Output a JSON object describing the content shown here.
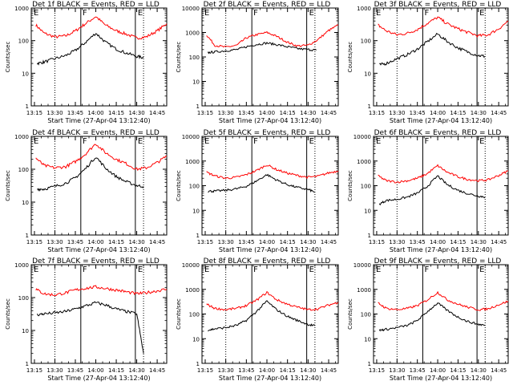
{
  "chart_data": [
    {
      "type": "line",
      "title": "Det 1f BLACK = Events, RED = LLD",
      "ylabel": "Counts/sec",
      "xlabel": "Start Time (27-Apr-04 13:12:40)",
      "y_max": 1000,
      "xlim": [
        "13:12:40",
        "14:52"
      ],
      "ylim": [
        1,
        1000
      ],
      "yscale": "log",
      "grid": false,
      "x_ticks": [
        "13:15",
        "13:30",
        "13:45",
        "14:00",
        "14:15",
        "14:30",
        "14:45"
      ],
      "y_ticks": [
        "1",
        "10",
        "100",
        "1000"
      ],
      "annotations": [
        "E",
        "F",
        "E"
      ],
      "series": [
        {
          "name": "RED = LLD",
          "color": "#ff0000",
          "x": [
            "13:16",
            "13:22",
            "13:30",
            "13:38",
            "13:45",
            "13:52",
            "14:00",
            "14:07",
            "14:15",
            "14:22",
            "14:30",
            "14:37",
            "14:45",
            "14:52"
          ],
          "values": [
            300,
            170,
            130,
            140,
            200,
            320,
            550,
            300,
            200,
            160,
            120,
            130,
            200,
            330
          ]
        },
        {
          "name": "BLACK = Events",
          "color": "#000000",
          "x": [
            "13:17",
            "13:22",
            "13:30",
            "13:38",
            "13:45",
            "13:52",
            "14:00",
            "14:07",
            "14:15",
            "14:22",
            "14:30",
            "14:35"
          ],
          "values": [
            20,
            22,
            28,
            35,
            50,
            85,
            170,
            90,
            55,
            42,
            33,
            30
          ]
        }
      ]
    },
    {
      "type": "line",
      "title": "Det 2f BLACK = Events, RED = LLD",
      "ylabel": "Counts/sec",
      "xlabel": "Start Time (27-Apr-04 13:12:40)",
      "y_max": 10000,
      "xlim": [
        "13:12:40",
        "14:52"
      ],
      "ylim": [
        1,
        10000
      ],
      "yscale": "log",
      "grid": false,
      "x_ticks": [
        "13:15",
        "13:30",
        "13:45",
        "14:00",
        "14:15",
        "14:30",
        "14:45"
      ],
      "y_ticks": [
        "1",
        "10",
        "100",
        "1000",
        "10000"
      ],
      "annotations": [
        "E",
        "F",
        "E"
      ],
      "series": [
        {
          "name": "RED = LLD",
          "color": "#ff0000",
          "x": [
            "13:16",
            "13:22",
            "13:30",
            "13:38",
            "13:45",
            "13:52",
            "14:00",
            "14:07",
            "14:15",
            "14:22",
            "14:30",
            "14:37",
            "14:45",
            "14:52"
          ],
          "values": [
            800,
            300,
            250,
            300,
            600,
            800,
            1000,
            700,
            400,
            280,
            300,
            500,
            1200,
            2000
          ]
        },
        {
          "name": "BLACK = Events",
          "color": "#000000",
          "x": [
            "13:17",
            "13:22",
            "13:30",
            "13:38",
            "13:45",
            "13:52",
            "14:00",
            "14:07",
            "14:15",
            "14:22",
            "14:30",
            "14:36"
          ],
          "values": [
            150,
            160,
            180,
            200,
            260,
            320,
            370,
            320,
            260,
            220,
            200,
            190
          ]
        }
      ]
    },
    {
      "type": "line",
      "title": "Det 3f BLACK = Events, RED = LLD",
      "ylabel": "Counts/sec",
      "xlabel": "Start Time (27-Apr-04 13:12:40)",
      "y_max": 1000,
      "xlim": [
        "13:12:40",
        "14:52"
      ],
      "ylim": [
        1,
        1000
      ],
      "yscale": "log",
      "grid": false,
      "x_ticks": [
        "13:15",
        "13:30",
        "13:45",
        "14:00",
        "14:15",
        "14:30",
        "14:45"
      ],
      "y_ticks": [
        "1",
        "10",
        "100",
        "1000"
      ],
      "annotations": [
        "E",
        "F",
        "E"
      ],
      "series": [
        {
          "name": "RED = LLD",
          "color": "#ff0000",
          "x": [
            "13:16",
            "13:22",
            "13:30",
            "13:38",
            "13:45",
            "13:52",
            "14:00",
            "14:07",
            "14:15",
            "14:22",
            "14:30",
            "14:37",
            "14:45",
            "14:52"
          ],
          "values": [
            300,
            200,
            150,
            170,
            220,
            330,
            520,
            330,
            230,
            180,
            140,
            150,
            230,
            400
          ]
        },
        {
          "name": "BLACK = Events",
          "color": "#000000",
          "x": [
            "13:17",
            "13:22",
            "13:30",
            "13:38",
            "13:45",
            "13:52",
            "14:00",
            "14:07",
            "14:15",
            "14:22",
            "14:30",
            "14:35"
          ],
          "values": [
            18,
            20,
            28,
            38,
            55,
            90,
            160,
            95,
            60,
            45,
            35,
            33
          ]
        }
      ]
    },
    {
      "type": "line",
      "title": "Det 4f BLACK = Events, RED = LLD",
      "ylabel": "Counts/sec",
      "xlabel": "Start Time (27-Apr-04 13:12:40)",
      "y_max": 1000,
      "xlim": [
        "13:12:40",
        "14:52"
      ],
      "ylim": [
        1,
        1000
      ],
      "yscale": "log",
      "grid": false,
      "x_ticks": [
        "13:15",
        "13:30",
        "13:45",
        "14:00",
        "14:15",
        "14:30",
        "14:45"
      ],
      "y_ticks": [
        "1",
        "10",
        "100",
        "1000"
      ],
      "annotations": [
        "E",
        "F",
        "E"
      ],
      "series": [
        {
          "name": "RED = LLD",
          "color": "#ff0000",
          "x": [
            "13:16",
            "13:22",
            "13:30",
            "13:38",
            "13:45",
            "13:52",
            "14:00",
            "14:07",
            "14:15",
            "14:22",
            "14:30",
            "14:37",
            "14:45",
            "14:52"
          ],
          "values": [
            220,
            130,
            110,
            120,
            170,
            280,
            600,
            320,
            200,
            150,
            100,
            110,
            160,
            250
          ]
        },
        {
          "name": "BLACK = Events",
          "color": "#000000",
          "x": [
            "13:17",
            "13:22",
            "13:30",
            "13:38",
            "13:45",
            "13:52",
            "14:00",
            "14:07",
            "14:15",
            "14:22",
            "14:30",
            "14:35"
          ],
          "values": [
            25,
            25,
            30,
            38,
            55,
            100,
            240,
            110,
            60,
            42,
            32,
            30
          ]
        }
      ]
    },
    {
      "type": "line",
      "title": "Det 5f BLACK = Events, RED = LLD",
      "ylabel": "Counts/sec",
      "xlabel": "Start Time (27-Apr-04 13:12:40)",
      "y_max": 10000,
      "xlim": [
        "13:12:40",
        "14:52"
      ],
      "ylim": [
        1,
        10000
      ],
      "yscale": "log",
      "grid": false,
      "x_ticks": [
        "13:15",
        "13:30",
        "13:45",
        "14:00",
        "14:15",
        "14:30",
        "14:45"
      ],
      "y_ticks": [
        "1",
        "10",
        "100",
        "1000",
        "10000"
      ],
      "annotations": [
        "E",
        "F",
        "E"
      ],
      "series": [
        {
          "name": "RED = LLD",
          "color": "#ff0000",
          "x": [
            "13:16",
            "13:22",
            "13:30",
            "13:38",
            "13:45",
            "13:52",
            "14:00",
            "14:07",
            "14:15",
            "14:22",
            "14:30",
            "14:37",
            "14:45",
            "14:52"
          ],
          "values": [
            350,
            250,
            200,
            220,
            280,
            400,
            700,
            450,
            320,
            260,
            220,
            240,
            330,
            400
          ]
        },
        {
          "name": "BLACK = Events",
          "color": "#000000",
          "x": [
            "13:17",
            "13:22",
            "13:30",
            "13:38",
            "13:45",
            "13:52",
            "14:00",
            "14:07",
            "14:15",
            "14:22",
            "14:30",
            "14:35"
          ],
          "values": [
            60,
            60,
            65,
            75,
            95,
            150,
            280,
            170,
            110,
            85,
            70,
            55
          ]
        }
      ]
    },
    {
      "type": "line",
      "title": "Det 6f BLACK = Events, RED = LLD",
      "ylabel": "Counts/sec",
      "xlabel": "Start Time (27-Apr-04 13:12:40)",
      "y_max": 10000,
      "xlim": [
        "13:12:40",
        "14:52"
      ],
      "ylim": [
        1,
        10000
      ],
      "yscale": "log",
      "grid": false,
      "x_ticks": [
        "13:15",
        "13:30",
        "13:45",
        "14:00",
        "14:15",
        "14:30",
        "14:45"
      ],
      "y_ticks": [
        "1",
        "10",
        "100",
        "1000",
        "10000"
      ],
      "annotations": [
        "E",
        "F",
        "E"
      ],
      "series": [
        {
          "name": "RED = LLD",
          "color": "#ff0000",
          "x": [
            "13:16",
            "13:22",
            "13:30",
            "13:38",
            "13:45",
            "13:52",
            "14:00",
            "14:07",
            "14:15",
            "14:22",
            "14:30",
            "14:37",
            "14:45",
            "14:52"
          ],
          "values": [
            250,
            160,
            140,
            160,
            200,
            300,
            650,
            350,
            230,
            180,
            160,
            170,
            260,
            400
          ]
        },
        {
          "name": "BLACK = Events",
          "color": "#000000",
          "x": [
            "13:17",
            "13:22",
            "13:30",
            "13:38",
            "13:45",
            "13:52",
            "14:00",
            "14:07",
            "14:15",
            "14:22",
            "14:30",
            "14:35"
          ],
          "values": [
            18,
            25,
            28,
            35,
            50,
            90,
            250,
            110,
            65,
            48,
            38,
            35
          ]
        }
      ]
    },
    {
      "type": "line",
      "title": "Det 7f BLACK = Events, RED = LLD",
      "ylabel": "Counts/sec",
      "xlabel": "Start Time (27-Apr-04 13:12:40)",
      "y_max": 1000,
      "xlim": [
        "13:12:40",
        "14:52"
      ],
      "ylim": [
        1,
        1000
      ],
      "yscale": "log",
      "grid": false,
      "x_ticks": [
        "13:15",
        "13:30",
        "13:45",
        "14:00",
        "14:15",
        "14:30",
        "14:45"
      ],
      "y_ticks": [
        "1",
        "10",
        "100",
        "1000"
      ],
      "annotations": [
        "E",
        "F",
        "E"
      ],
      "series": [
        {
          "name": "RED = LLD",
          "color": "#ff0000",
          "x": [
            "13:16",
            "13:22",
            "13:30",
            "13:38",
            "13:45",
            "13:52",
            "14:00",
            "14:07",
            "14:15",
            "14:22",
            "14:30",
            "14:37",
            "14:45",
            "14:52"
          ],
          "values": [
            180,
            130,
            120,
            140,
            170,
            190,
            210,
            190,
            170,
            150,
            130,
            140,
            160,
            180
          ]
        },
        {
          "name": "BLACK = Events",
          "color": "#000000",
          "x": [
            "13:17",
            "13:22",
            "13:30",
            "13:38",
            "13:45",
            "13:52",
            "14:00",
            "14:07",
            "14:15",
            "14:22",
            "14:30",
            "14:35"
          ],
          "values": [
            30,
            32,
            34,
            38,
            45,
            55,
            70,
            60,
            45,
            38,
            32,
            2
          ]
        }
      ]
    },
    {
      "type": "line",
      "title": "Det 8f BLACK = Events, RED = LLD",
      "ylabel": "Counts/sec",
      "xlabel": "Start Time (27-Apr-04 13:12:40)",
      "y_max": 10000,
      "xlim": [
        "13:12:40",
        "14:52"
      ],
      "ylim": [
        1,
        10000
      ],
      "yscale": "log",
      "grid": false,
      "x_ticks": [
        "13:15",
        "13:30",
        "13:45",
        "14:00",
        "14:15",
        "14:30",
        "14:45"
      ],
      "y_ticks": [
        "1",
        "10",
        "100",
        "1000",
        "10000"
      ],
      "annotations": [
        "E",
        "F",
        "E"
      ],
      "series": [
        {
          "name": "RED = LLD",
          "color": "#ff0000",
          "x": [
            "13:16",
            "13:22",
            "13:30",
            "13:38",
            "13:45",
            "13:52",
            "14:00",
            "14:07",
            "14:15",
            "14:22",
            "14:30",
            "14:37",
            "14:45",
            "14:52"
          ],
          "values": [
            250,
            170,
            150,
            170,
            220,
            350,
            750,
            380,
            250,
            190,
            150,
            160,
            230,
            300
          ]
        },
        {
          "name": "BLACK = Events",
          "color": "#000000",
          "x": [
            "13:17",
            "13:22",
            "13:30",
            "13:38",
            "13:45",
            "13:52",
            "14:00",
            "14:07",
            "14:15",
            "14:22",
            "14:30",
            "14:35"
          ],
          "values": [
            22,
            25,
            28,
            35,
            55,
            120,
            330,
            150,
            80,
            55,
            38,
            33
          ]
        }
      ]
    },
    {
      "type": "line",
      "title": "Det 9f BLACK = Events, RED = LLD",
      "ylabel": "Counts/sec",
      "xlabel": "Start Time (27-Apr-04 13:12:40)",
      "y_max": 10000,
      "xlim": [
        "13:12:40",
        "14:52"
      ],
      "ylim": [
        1,
        10000
      ],
      "yscale": "log",
      "grid": false,
      "x_ticks": [
        "13:15",
        "13:30",
        "13:45",
        "14:00",
        "14:15",
        "14:30",
        "14:45"
      ],
      "y_ticks": [
        "1",
        "10",
        "100",
        "1000",
        "10000"
      ],
      "annotations": [
        "E",
        "F",
        "E"
      ],
      "series": [
        {
          "name": "RED = LLD",
          "color": "#ff0000",
          "x": [
            "13:16",
            "13:22",
            "13:30",
            "13:38",
            "13:45",
            "13:52",
            "14:00",
            "14:07",
            "14:15",
            "14:22",
            "14:30",
            "14:37",
            "14:45",
            "14:52"
          ],
          "values": [
            280,
            170,
            150,
            170,
            220,
            360,
            750,
            380,
            250,
            190,
            150,
            160,
            240,
            330
          ]
        },
        {
          "name": "BLACK = Events",
          "color": "#000000",
          "x": [
            "13:17",
            "13:22",
            "13:30",
            "13:38",
            "13:45",
            "13:52",
            "14:00",
            "14:07",
            "14:15",
            "14:22",
            "14:30",
            "14:35"
          ],
          "values": [
            22,
            24,
            28,
            35,
            55,
            120,
            280,
            140,
            75,
            50,
            38,
            35
          ]
        }
      ]
    }
  ]
}
